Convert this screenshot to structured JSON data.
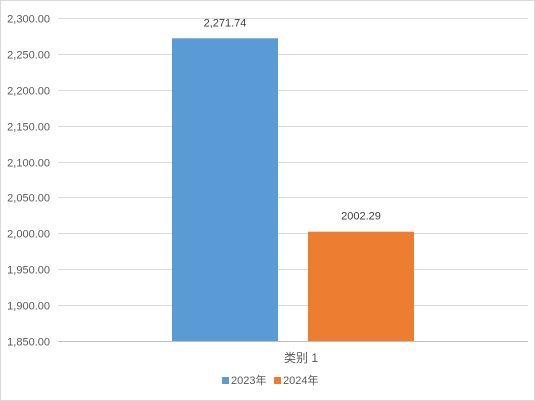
{
  "chart_data": {
    "type": "bar",
    "categories": [
      "类别 1"
    ],
    "series": [
      {
        "name": "2023年",
        "values": [
          2271.74
        ],
        "label": "2,271.74",
        "color": "#5b9bd5"
      },
      {
        "name": "2024年",
        "values": [
          2002.29
        ],
        "label": "2002.29",
        "color": "#ed7d31"
      }
    ],
    "title": "",
    "xlabel": "",
    "ylabel": "",
    "ylim": [
      1850,
      2300
    ],
    "yticks": [
      {
        "value": 1850,
        "label": "1,850.00"
      },
      {
        "value": 1900,
        "label": "1,900.00"
      },
      {
        "value": 1950,
        "label": "1,950.00"
      },
      {
        "value": 2000,
        "label": "2,000.00"
      },
      {
        "value": 2050,
        "label": "2,050.00"
      },
      {
        "value": 2100,
        "label": "2,100.00"
      },
      {
        "value": 2150,
        "label": "2,150.00"
      },
      {
        "value": 2200,
        "label": "2,200.00"
      },
      {
        "value": 2250,
        "label": "2,250.00"
      },
      {
        "value": 2300,
        "label": "2,300.00"
      }
    ],
    "grid": true,
    "legend_position": "bottom"
  }
}
